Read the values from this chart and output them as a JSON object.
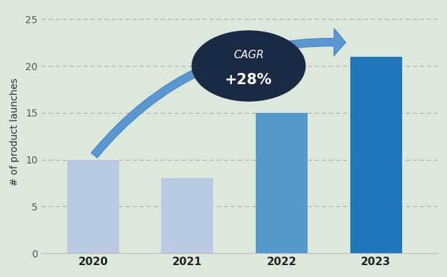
{
  "categories": [
    "2020",
    "2021",
    "2022",
    "2023"
  ],
  "values": [
    10,
    8,
    15,
    21
  ],
  "bar_colors": [
    "#b8c9e1",
    "#b8c9e1",
    "#5599cc",
    "#2277bb"
  ],
  "ylabel": "# of product launches",
  "ylim": [
    0,
    26
  ],
  "yticks": [
    0,
    5,
    10,
    15,
    20,
    25
  ],
  "grid_y": [
    5,
    10,
    15,
    20,
    25
  ],
  "cagr_text_line1": "CAGR",
  "cagr_text_line2": "+28%",
  "circle_color": "#1b2a44",
  "arrow_color": "#4488cc",
  "background_color": "#dde8dd"
}
